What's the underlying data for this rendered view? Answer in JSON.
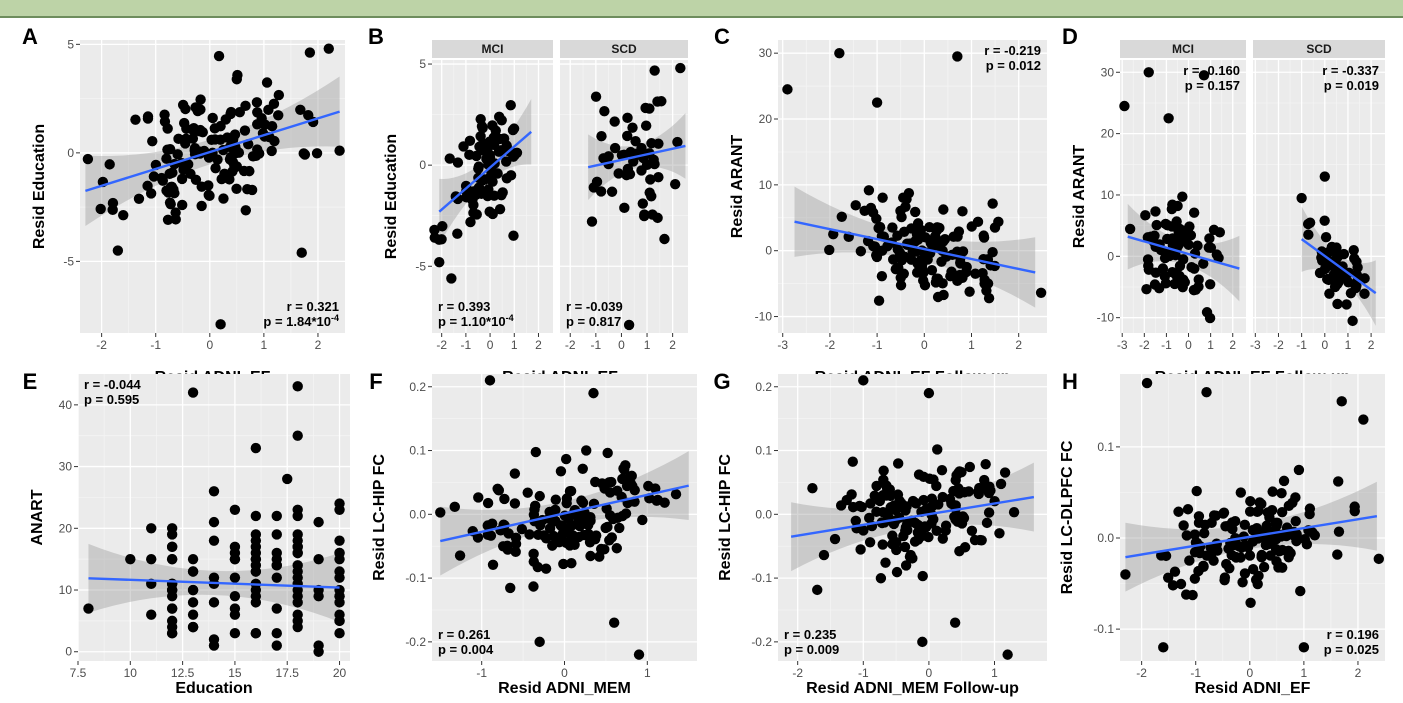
{
  "chart_data": [
    {
      "id": "A",
      "type": "scatter",
      "xlabel": "Resid ADNI_EF",
      "ylabel": "Resid Education",
      "xlim": [
        -2.4,
        2.5
      ],
      "ylim": [
        -8.3,
        5.2
      ],
      "xticks": [
        -2,
        -1,
        0,
        1,
        2
      ],
      "yticks": [
        -5,
        0,
        5
      ],
      "annotation": {
        "position": "bottom-right",
        "r": "r = 0.321",
        "p": "p = 1.84*10",
        "p_sup": "-4"
      },
      "fit": {
        "x0": -2.3,
        "y0": -1.75,
        "x1": 2.4,
        "y1": 1.9
      },
      "seed": 11,
      "n": 150,
      "xmean": 0,
      "xsd": 0.8,
      "slope": 0.78,
      "intercept": 0.1,
      "noise": 2.5,
      "outliers": [
        [
          0.2,
          -7.9
        ],
        [
          2.2,
          4.8
        ],
        [
          -1.7,
          -4.5
        ],
        [
          2.4,
          0.1
        ],
        [
          1.7,
          -4.6
        ]
      ]
    },
    {
      "id": "B",
      "type": "scatter",
      "facets": [
        "MCI",
        "SCD"
      ],
      "xlabel": "Resid ADNI_EF",
      "ylabel": "Resid Education",
      "xlim": [
        -2.4,
        2.6
      ],
      "ylim": [
        -8.3,
        5.2
      ],
      "xticks": [
        -2,
        -1,
        0,
        1,
        2
      ],
      "yticks": [
        -5,
        0,
        5
      ],
      "panels": [
        {
          "facet": "MCI",
          "annotation": {
            "position": "bottom-left",
            "r": "r = 0.393",
            "p": "p = 1.10*10",
            "p_sup": "-4"
          },
          "fit": {
            "x0": -2.1,
            "y0": -2.3,
            "x1": 1.7,
            "y1": 1.65
          },
          "seed": 21,
          "n": 95,
          "xmean": -0.1,
          "xsd": 0.75,
          "slope": 1.05,
          "intercept": -0.3,
          "noise": 2.2,
          "outliers": [
            [
              -1.6,
              -5.6
            ],
            [
              -2.1,
              -4.8
            ]
          ]
        },
        {
          "facet": "SCD",
          "annotation": {
            "position": "bottom-left",
            "r": "r = -0.039",
            "p": "p = 0.817",
            "p_sup": ""
          },
          "fit": {
            "x0": -1.3,
            "y0": -0.1,
            "x1": 2.5,
            "y1": 0.95
          },
          "seed": 22,
          "n": 55,
          "xmean": 0.4,
          "xsd": 0.8,
          "slope": 0.28,
          "intercept": 0.25,
          "noise": 2.6,
          "outliers": [
            [
              0.3,
              -7.9
            ],
            [
              2.3,
              4.8
            ]
          ]
        }
      ]
    },
    {
      "id": "C",
      "type": "scatter",
      "xlabel": "Resid ADNI_EF Follow-up",
      "ylabel": "Resid ARANT",
      "xlim": [
        -3.1,
        2.6
      ],
      "ylim": [
        -12.5,
        32
      ],
      "xticks": [
        -3,
        -2,
        -1,
        0,
        1,
        2
      ],
      "yticks": [
        -10,
        0,
        10,
        20,
        30
      ],
      "annotation": {
        "position": "top-right",
        "r": "r = -0.219",
        "p": "p = 0.012",
        "p_sup": ""
      },
      "fit": {
        "x0": -2.75,
        "y0": 4.4,
        "x1": 2.35,
        "y1": -3.3
      },
      "seed": 31,
      "n": 140,
      "xmean": 0,
      "xsd": 0.9,
      "slope": -1.5,
      "intercept": 0.2,
      "noise": 6,
      "outliers": [
        [
          -1.8,
          30
        ],
        [
          0.7,
          29.5
        ],
        [
          -2.9,
          24.5
        ],
        [
          -1.0,
          22.5
        ]
      ]
    },
    {
      "id": "D",
      "type": "scatter",
      "facets": [
        "MCI",
        "SCD"
      ],
      "xlabel": "Resid ADNI_EF Follow-up",
      "ylabel": "Resid ARANT",
      "xlim": [
        -3.1,
        2.6
      ],
      "ylim": [
        -12.5,
        32
      ],
      "xticks": [
        -3,
        -2,
        -1,
        0,
        1,
        2
      ],
      "yticks": [
        -10,
        0,
        10,
        20,
        30
      ],
      "panels": [
        {
          "facet": "MCI",
          "annotation": {
            "position": "top-right",
            "r": "r = -0.160",
            "p": "p = 0.157",
            "p_sup": ""
          },
          "fit": {
            "x0": -2.75,
            "y0": 3.2,
            "x1": 2.3,
            "y1": -2.0
          },
          "seed": 41,
          "n": 85,
          "xmean": -0.3,
          "xsd": 1.0,
          "slope": -1.0,
          "intercept": 0.4,
          "noise": 6,
          "outliers": [
            [
              -1.8,
              30
            ],
            [
              0.7,
              29.5
            ],
            [
              -2.9,
              24.5
            ],
            [
              -0.9,
              22.5
            ]
          ]
        },
        {
          "facet": "SCD",
          "annotation": {
            "position": "top-right",
            "r": "r = -0.337",
            "p": "p = 0.019",
            "p_sup": ""
          },
          "fit": {
            "x0": -1.0,
            "y0": 2.8,
            "x1": 2.2,
            "y1": -6.0
          },
          "seed": 42,
          "n": 55,
          "xmean": 0.4,
          "xsd": 0.7,
          "slope": -2.7,
          "intercept": 0.2,
          "noise": 4.5,
          "outliers": [
            [
              0.0,
              13
            ],
            [
              -1.0,
              9.5
            ]
          ]
        }
      ]
    },
    {
      "id": "E",
      "type": "scatter",
      "xlabel": "Education",
      "ylabel": "ANART",
      "xlim": [
        7.5,
        20.5
      ],
      "ylim": [
        -1.5,
        45
      ],
      "xticks": [
        7.5,
        10.0,
        12.5,
        15.0,
        17.5,
        20.0
      ],
      "yticks": [
        0,
        10,
        20,
        30,
        40
      ],
      "annotation": {
        "position": "top-left",
        "r": "r = -0.044",
        "p": "p = 0.595",
        "p_sup": ""
      },
      "fit": {
        "x0": 8,
        "y0": 11.9,
        "x1": 20,
        "y1": 10.4
      },
      "seed": 51,
      "discreteX": [
        11,
        12,
        13,
        14,
        15,
        16,
        17,
        18,
        19,
        20
      ],
      "discreteN": [
        3,
        18,
        10,
        7,
        10,
        16,
        10,
        18,
        6,
        16
      ],
      "outliers": [
        [
          8,
          7
        ],
        [
          10,
          15
        ],
        [
          11,
          15
        ],
        [
          13,
          42
        ],
        [
          16,
          33
        ],
        [
          18,
          43
        ],
        [
          18,
          35
        ],
        [
          14,
          26
        ],
        [
          17.5,
          28
        ]
      ]
    },
    {
      "id": "F",
      "type": "scatter",
      "xlabel": "Resid ADNI_MEM",
      "ylabel": "Resid LC-HIP FC",
      "xlim": [
        -1.6,
        1.6
      ],
      "ylim": [
        -0.23,
        0.22
      ],
      "xticks": [
        -1,
        0,
        1
      ],
      "yticks": [
        -0.2,
        -0.1,
        0.0,
        0.1,
        0.2
      ],
      "annotation": {
        "position": "bottom-left",
        "r": "r = 0.261",
        "p": "p = 0.004",
        "p_sup": ""
      },
      "fit": {
        "x0": -1.5,
        "y0": -0.042,
        "x1": 1.5,
        "y1": 0.045
      },
      "seed": 61,
      "n": 150,
      "xmean": 0,
      "xsd": 0.6,
      "slope": 0.029,
      "intercept": 0.0,
      "noise": 0.07,
      "outliers": [
        [
          -0.9,
          0.21
        ],
        [
          0.35,
          0.19
        ],
        [
          0.9,
          -0.22
        ],
        [
          0.6,
          -0.17
        ],
        [
          -0.3,
          -0.2
        ]
      ]
    },
    {
      "id": "G",
      "type": "scatter",
      "xlabel": "Resid ADNI_MEM Follow-up",
      "ylabel": "Resid LC-HIP FC",
      "xlim": [
        -2.3,
        1.8
      ],
      "ylim": [
        -0.23,
        0.22
      ],
      "xticks": [
        -2,
        -1,
        0,
        1
      ],
      "yticks": [
        -0.2,
        -0.1,
        0.0,
        0.1,
        0.2
      ],
      "annotation": {
        "position": "bottom-left",
        "r": "r = 0.235",
        "p": "p = 0.009",
        "p_sup": ""
      },
      "fit": {
        "x0": -2.1,
        "y0": -0.035,
        "x1": 1.6,
        "y1": 0.027
      },
      "seed": 71,
      "n": 150,
      "xmean": -0.1,
      "xsd": 0.75,
      "slope": 0.017,
      "intercept": 0.0,
      "noise": 0.07,
      "outliers": [
        [
          -1.0,
          0.21
        ],
        [
          0.0,
          0.19
        ],
        [
          1.2,
          -0.22
        ],
        [
          -0.1,
          -0.2
        ],
        [
          0.4,
          -0.17
        ]
      ]
    },
    {
      "id": "H",
      "type": "scatter",
      "xlabel": "Resid ADNI_EF",
      "ylabel": "Resid LC-DLPFC FC",
      "xlim": [
        -2.4,
        2.5
      ],
      "ylim": [
        -0.135,
        0.18
      ],
      "xticks": [
        -2,
        -1,
        0,
        1,
        2
      ],
      "yticks": [
        -0.1,
        0.0,
        0.1
      ],
      "annotation": {
        "position": "bottom-right",
        "r": "r = 0.196",
        "p": "p = 0.025",
        "p_sup": ""
      },
      "fit": {
        "x0": -2.3,
        "y0": -0.021,
        "x1": 2.35,
        "y1": 0.024
      },
      "seed": 81,
      "n": 150,
      "xmean": 0,
      "xsd": 0.75,
      "slope": 0.0095,
      "intercept": 0.0,
      "noise": 0.045,
      "outliers": [
        [
          -1.9,
          0.17
        ],
        [
          -0.8,
          0.16
        ],
        [
          1.7,
          0.15
        ],
        [
          2.1,
          0.13
        ],
        [
          -2.3,
          -0.04
        ],
        [
          -1.6,
          -0.12
        ],
        [
          1.0,
          -0.12
        ]
      ]
    }
  ]
}
